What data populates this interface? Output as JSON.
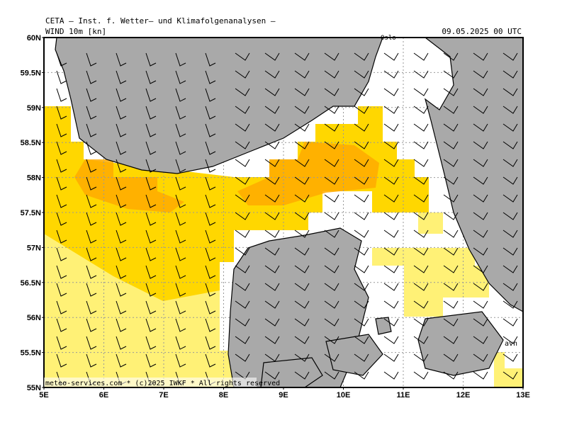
{
  "header": {
    "institute": "CETA — Inst. f. Wetter— und Klimafolgenanalysen —",
    "field": "WIND 10m [kn]",
    "datetime": "09.05.2025 00 UTC"
  },
  "axes": {
    "lat_labels": [
      "60N",
      "59.5N",
      "59N",
      "58.5N",
      "58N",
      "57.5N",
      "57N",
      "56.5N",
      "56N",
      "55.5N",
      "55N"
    ],
    "lon_labels": [
      "5E",
      "6E",
      "7E",
      "8E",
      "9E",
      "10E",
      "11E",
      "12E",
      "13E"
    ]
  },
  "places": [
    "Oslo",
    "avn"
  ],
  "footer": {
    "copyright": "meteo-services.com * (c)2025 IWKF * All rights reserved"
  }
}
